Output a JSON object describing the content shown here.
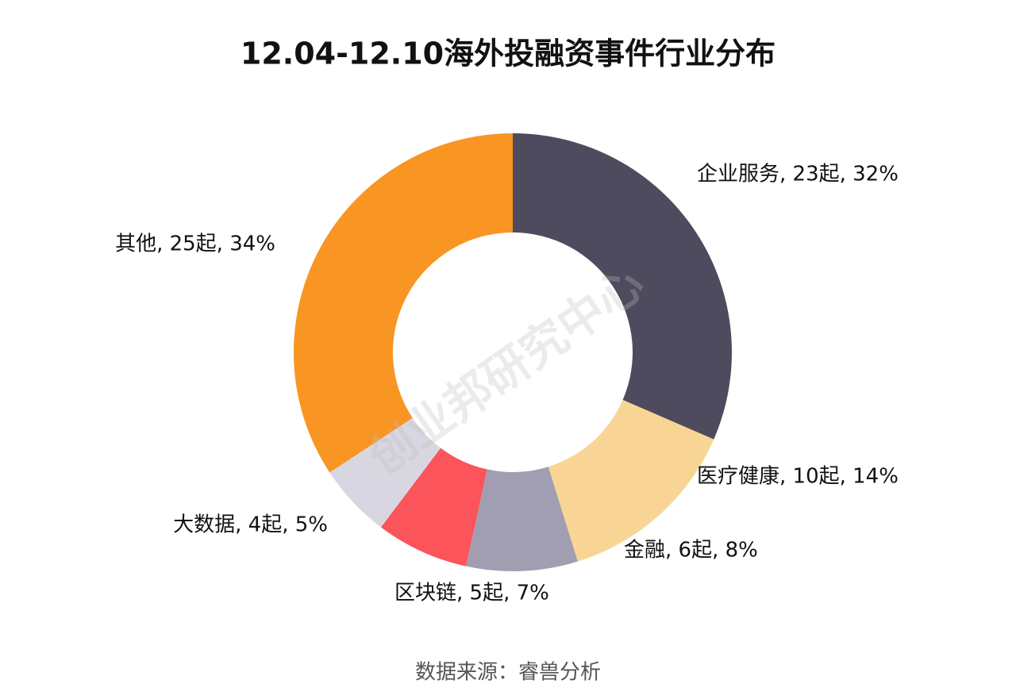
{
  "chart_data": {
    "type": "donut",
    "title": "12.04-12.10海外投融资事件行业分布",
    "values": [
      23,
      10,
      6,
      5,
      4,
      25
    ],
    "value_labels": [
      "企业服务, 23起, 32%",
      "医疗健康, 10起, 14%",
      "金融, 6起, 8%",
      "区块链, 5起, 7%",
      "大数据, 4起, 5%",
      "其他, 25起, 34%"
    ],
    "colors": [
      "#4f4b5e",
      "#f8d594",
      "#a29eb1",
      "#fb545a",
      "#d8d7e1",
      "#f99522"
    ],
    "source": "数据来源：睿兽分析",
    "watermark": "创业邦研究中心"
  }
}
